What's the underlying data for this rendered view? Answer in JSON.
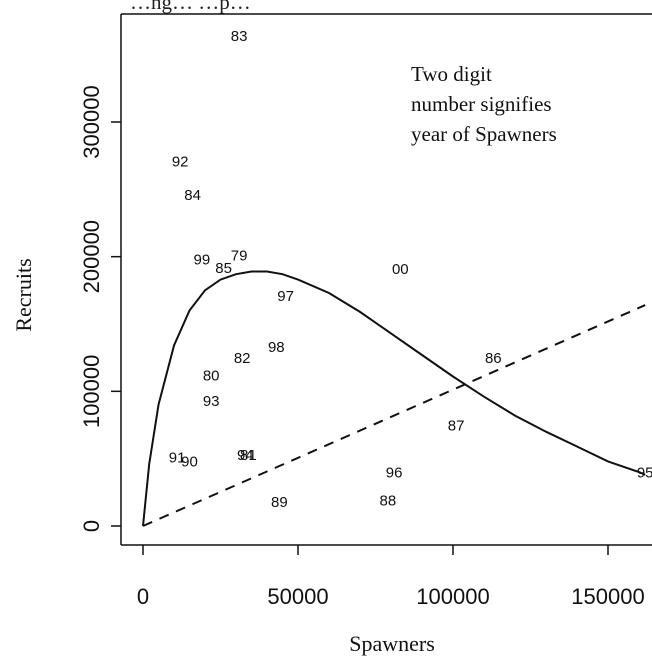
{
  "chart_data": {
    "type": "scatter",
    "title": "…ng… …p…",
    "xlabel": "Spawners",
    "ylabel": "Recruits",
    "xlim": [
      -5000,
      165000
    ],
    "ylim": [
      -15000,
      370000
    ],
    "x_ticks": [
      0,
      50000,
      100000,
      150000
    ],
    "x_tick_labels": [
      "0",
      "50000",
      "100000",
      "150000"
    ],
    "y_ticks": [
      0,
      100000,
      200000,
      300000
    ],
    "y_tick_labels": [
      "0",
      "100000",
      "200000",
      "300000"
    ],
    "annotation": [
      "Two digit",
      "number signifies",
      "year of Spawners"
    ],
    "points": [
      {
        "label": "83",
        "x": 31000,
        "y": 363000
      },
      {
        "label": "92",
        "x": 12000,
        "y": 270000
      },
      {
        "label": "84",
        "x": 16000,
        "y": 245000
      },
      {
        "label": "99",
        "x": 19000,
        "y": 197000
      },
      {
        "label": "79",
        "x": 31000,
        "y": 200000
      },
      {
        "label": "85",
        "x": 26000,
        "y": 191000
      },
      {
        "label": "00",
        "x": 83000,
        "y": 190000
      },
      {
        "label": "97",
        "x": 46000,
        "y": 170000
      },
      {
        "label": "98",
        "x": 43000,
        "y": 132000
      },
      {
        "label": "82",
        "x": 32000,
        "y": 124000
      },
      {
        "label": "86",
        "x": 113000,
        "y": 124000
      },
      {
        "label": "80",
        "x": 22000,
        "y": 111000
      },
      {
        "label": "93",
        "x": 22000,
        "y": 92000
      },
      {
        "label": "87",
        "x": 101000,
        "y": 74000
      },
      {
        "label": "91",
        "x": 11000,
        "y": 50000
      },
      {
        "label": "90",
        "x": 15000,
        "y": 47000
      },
      {
        "label": "94",
        "x": 33000,
        "y": 52000
      },
      {
        "label": "81",
        "x": 34000,
        "y": 52000
      },
      {
        "label": "96",
        "x": 81000,
        "y": 39000
      },
      {
        "label": "95",
        "x": 162000,
        "y": 39000
      },
      {
        "label": "89",
        "x": 44000,
        "y": 17000
      },
      {
        "label": "88",
        "x": 79000,
        "y": 18000
      }
    ],
    "series": [
      {
        "style": "solid",
        "x": [
          0,
          2000,
          5000,
          10000,
          15000,
          20000,
          25000,
          30000,
          35000,
          40000,
          45000,
          50000,
          60000,
          70000,
          80000,
          90000,
          100000,
          110000,
          120000,
          130000,
          140000,
          150000,
          160000,
          162000
        ],
        "y": [
          0,
          46000,
          90000,
          134000,
          160000,
          175000,
          183000,
          187000,
          189000,
          189000,
          187000,
          183000,
          173000,
          159000,
          143000,
          127000,
          111000,
          96000,
          82000,
          70000,
          59000,
          48000,
          40000,
          38000
        ]
      },
      {
        "style": "dashed",
        "x": [
          0,
          162000
        ],
        "y": [
          0,
          164000
        ]
      }
    ]
  }
}
